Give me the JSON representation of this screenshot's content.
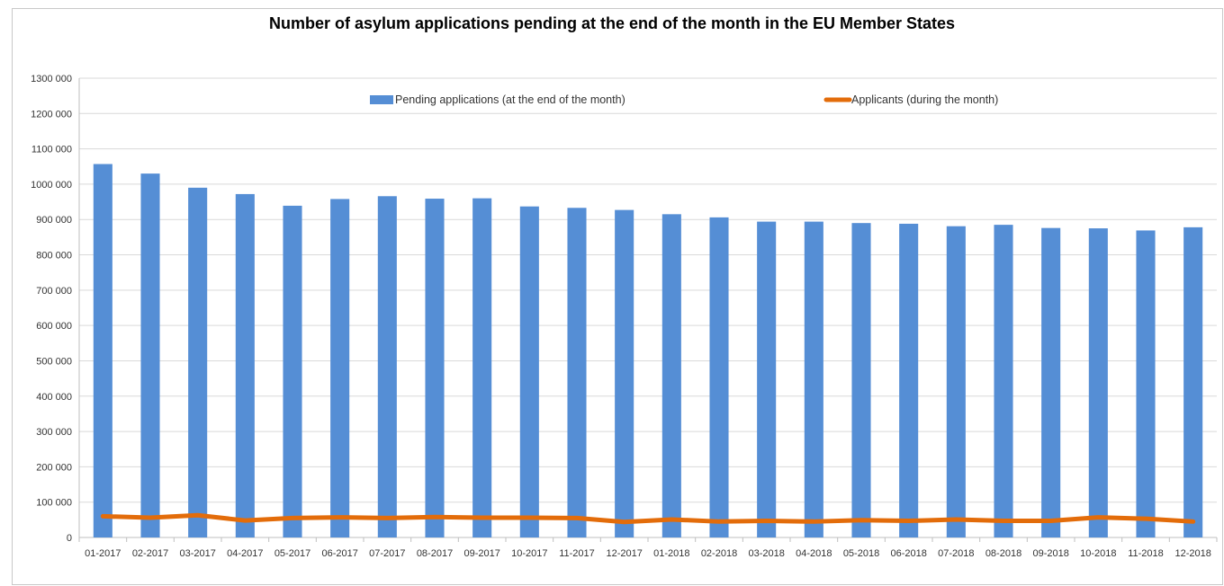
{
  "chart_data": {
    "type": "bar",
    "title": "Number of asylum applications pending at the end of the month in the EU Member States",
    "xlabel": "",
    "ylabel": "",
    "ylim": [
      0,
      1300000
    ],
    "ytick_step": 100000,
    "ytick_labels": [
      "0",
      "100 000",
      "200 000",
      "300 000",
      "400 000",
      "500 000",
      "600 000",
      "700 000",
      "800 000",
      "900 000",
      "1000 000",
      "1100 000",
      "1200 000",
      "1300 000"
    ],
    "grid": "horizontal",
    "legend_position": "top-center",
    "categories": [
      "01-2017",
      "02-2017",
      "03-2017",
      "04-2017",
      "05-2017",
      "06-2017",
      "07-2017",
      "08-2017",
      "09-2017",
      "10-2017",
      "11-2017",
      "12-2017",
      "01-2018",
      "02-2018",
      "03-2018",
      "04-2018",
      "05-2018",
      "06-2018",
      "07-2018",
      "08-2018",
      "09-2018",
      "10-2018",
      "11-2018",
      "12-2018"
    ],
    "series": [
      {
        "name": "Pending applications (at the end of the month)",
        "type": "bar",
        "color": "#558ED5",
        "values": [
          1057000,
          1030000,
          990000,
          972000,
          939000,
          958000,
          966000,
          959000,
          960000,
          937000,
          933000,
          927000,
          915000,
          906000,
          894000,
          894000,
          890000,
          888000,
          881000,
          885000,
          876000,
          875000,
          869000,
          878000
        ]
      },
      {
        "name": "Applicants (during the month)",
        "type": "line",
        "color": "#E36C0A",
        "values": [
          60000,
          56000,
          63000,
          48000,
          55000,
          57000,
          55000,
          58000,
          56000,
          56000,
          55000,
          44000,
          51000,
          45000,
          47000,
          45000,
          49000,
          47000,
          51000,
          47000,
          47000,
          57000,
          53000,
          45000
        ]
      }
    ]
  }
}
